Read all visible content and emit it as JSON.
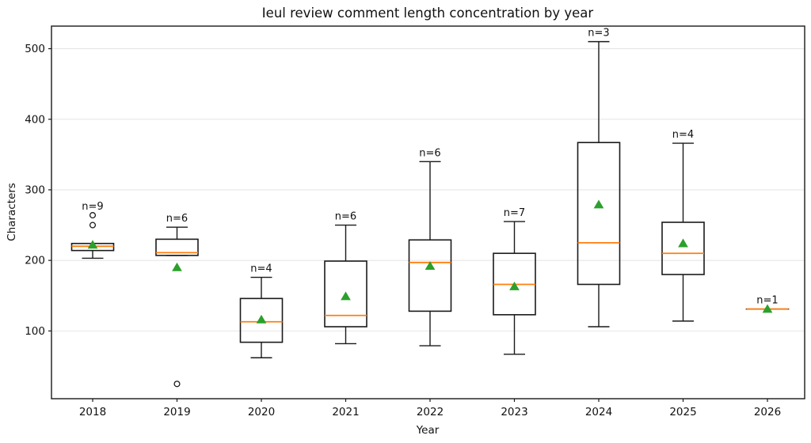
{
  "chart_data": {
    "type": "boxplot",
    "title": "Ieul review comment length concentration by year",
    "xlabel": "Year",
    "ylabel": "Characters",
    "ylim": [
      4,
      532
    ],
    "yticks": [
      100,
      200,
      300,
      400,
      500
    ],
    "grid": "horizontal-light",
    "legend": "none",
    "categories": [
      "2018",
      "2019",
      "2020",
      "2021",
      "2022",
      "2023",
      "2024",
      "2025",
      "2026"
    ],
    "boxes": [
      {
        "year": "2018",
        "n": 9,
        "n_label": "n=9",
        "whisker_low": 203,
        "q1": 214,
        "median": 220,
        "q3": 224,
        "whisker_high": 224,
        "mean": 222,
        "outliers": [
          250,
          264
        ]
      },
      {
        "year": "2019",
        "n": 6,
        "n_label": "n=6",
        "whisker_low": 207,
        "q1": 207,
        "median": 211,
        "q3": 230,
        "whisker_high": 247,
        "mean": 190,
        "outliers": [
          25
        ]
      },
      {
        "year": "2020",
        "n": 4,
        "n_label": "n=4",
        "whisker_low": 62,
        "q1": 84,
        "median": 113,
        "q3": 146,
        "whisker_high": 176,
        "mean": 116,
        "outliers": []
      },
      {
        "year": "2021",
        "n": 6,
        "n_label": "n=6",
        "whisker_low": 82,
        "q1": 106,
        "median": 122,
        "q3": 199,
        "whisker_high": 250,
        "mean": 149,
        "outliers": []
      },
      {
        "year": "2022",
        "n": 6,
        "n_label": "n=6",
        "whisker_low": 79,
        "q1": 128,
        "median": 197,
        "q3": 229,
        "whisker_high": 340,
        "mean": 192,
        "outliers": []
      },
      {
        "year": "2023",
        "n": 7,
        "n_label": "n=7",
        "whisker_low": 67,
        "q1": 123,
        "median": 166,
        "q3": 210,
        "whisker_high": 255,
        "mean": 163,
        "outliers": []
      },
      {
        "year": "2024",
        "n": 3,
        "n_label": "n=3",
        "whisker_low": 106,
        "q1": 166,
        "median": 225,
        "q3": 367,
        "whisker_high": 510,
        "mean": 279,
        "outliers": []
      },
      {
        "year": "2025",
        "n": 4,
        "n_label": "n=4",
        "whisker_low": 114,
        "q1": 180,
        "median": 210,
        "q3": 254,
        "whisker_high": 366,
        "mean": 224,
        "outliers": []
      },
      {
        "year": "2026",
        "n": 1,
        "n_label": "n=1",
        "whisker_low": 131,
        "q1": 131,
        "median": 131,
        "q3": 131,
        "whisker_high": 131,
        "mean": 131,
        "outliers": []
      }
    ],
    "colors": {
      "median": "#ff7f0e",
      "mean_marker": "#2ca02c",
      "box_edge": "#1a1a1a",
      "grid": "#e6e6e6",
      "background": "#ffffff"
    }
  }
}
